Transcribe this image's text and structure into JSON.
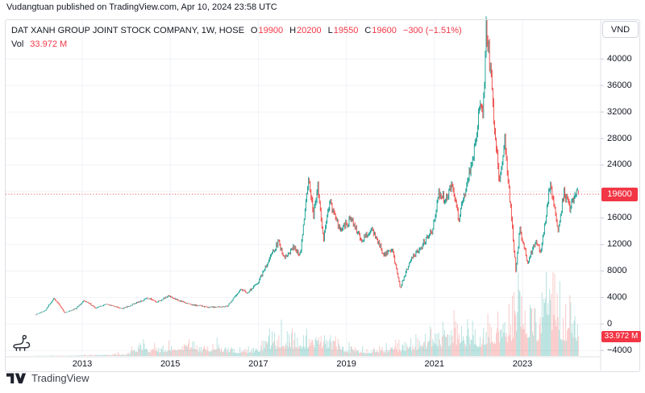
{
  "attribution": "Vudangtuan published on TradingView.com, Apr 10, 2024 23:58 UTC",
  "legend": {
    "symbol_title": "DAT XANH GROUP JOINT STOCK COMPANY, 1W, HOSE",
    "open_label": "O",
    "open_value": "19900",
    "high_label": "H",
    "high_value": "20200",
    "low_label": "L",
    "low_value": "19550",
    "close_label": "C",
    "close_value": "19600",
    "change_value": "−300 (−1.51%)",
    "volume_label": "Vol",
    "volume_value": "33.972 M"
  },
  "price_axis": {
    "currency_button": "VND",
    "price_badge": "19600",
    "volume_badge": "33.972 M"
  },
  "time_axis": {
    "labels": [
      "2013",
      "2015",
      "2017",
      "2019",
      "2021",
      "2023"
    ]
  },
  "footer": {
    "brand": "TradingView"
  },
  "colors": {
    "up": "#26a69a",
    "down": "#ef5350",
    "vol_up": "rgba(38,166,154,0.32)",
    "vol_down": "rgba(239,83,80,0.30)",
    "accent_red": "#f23645",
    "grid": "#f0f2f7",
    "border": "#dde0e6",
    "tick": "#c9ccd6",
    "text": "#131722"
  },
  "chart_data": {
    "type": "candlestick",
    "title": "DAT XANH GROUP JOINT STOCK COMPANY, 1W, HOSE",
    "timeframe": "1W",
    "currency": "VND",
    "legend_position": "top-left",
    "grid": "on",
    "price_line": 19600,
    "last_candle": {
      "open": 19900,
      "high": 20200,
      "low": 19550,
      "close": 19600,
      "change": -300,
      "change_pct": -1.51,
      "volume_millions": 33.972
    },
    "x_axis": {
      "start_year_fraction": 2011.95,
      "end_year_fraction": 2024.27,
      "tick_labels": [
        "2013",
        "2015",
        "2017",
        "2019",
        "2021",
        "2023"
      ]
    },
    "y_axis": {
      "unit": "VND",
      "gridlines": [
        40000,
        36000,
        32000,
        28000,
        24000,
        20000,
        16000,
        12000,
        8000,
        4000,
        0,
        -4000
      ],
      "ticks": [
        [
          40000,
          "40000"
        ],
        [
          36000,
          "36000"
        ],
        [
          32000,
          "32000"
        ],
        [
          28000,
          "28000"
        ],
        [
          24000,
          "24000"
        ],
        [
          16000,
          "16000"
        ],
        [
          12000,
          "12000"
        ],
        [
          8000,
          "8000"
        ],
        [
          4000,
          "4000"
        ],
        [
          0,
          "0"
        ],
        [
          -4000,
          "−4000"
        ]
      ],
      "visible_range": [
        -5000,
        47000
      ]
    },
    "price_keypoints": [
      [
        2011.95,
        1400
      ],
      [
        2012.15,
        2000
      ],
      [
        2012.36,
        3900
      ],
      [
        2012.6,
        1700
      ],
      [
        2012.85,
        2300
      ],
      [
        2013.05,
        3600
      ],
      [
        2013.3,
        2400
      ],
      [
        2013.55,
        3000
      ],
      [
        2013.9,
        2300
      ],
      [
        2014.2,
        3100
      ],
      [
        2014.5,
        3900
      ],
      [
        2014.7,
        3300
      ],
      [
        2014.95,
        4200
      ],
      [
        2015.2,
        3500
      ],
      [
        2015.5,
        2900
      ],
      [
        2015.9,
        2500
      ],
      [
        2016.3,
        2700
      ],
      [
        2016.6,
        5200
      ],
      [
        2016.75,
        4700
      ],
      [
        2017.0,
        6300
      ],
      [
        2017.25,
        9800
      ],
      [
        2017.45,
        12400
      ],
      [
        2017.6,
        9900
      ],
      [
        2017.8,
        11800
      ],
      [
        2017.95,
        10400
      ],
      [
        2018.15,
        22300
      ],
      [
        2018.25,
        16200
      ],
      [
        2018.35,
        20900
      ],
      [
        2018.48,
        12300
      ],
      [
        2018.62,
        18700
      ],
      [
        2018.85,
        14200
      ],
      [
        2019.1,
        15800
      ],
      [
        2019.35,
        12600
      ],
      [
        2019.6,
        14300
      ],
      [
        2019.85,
        10400
      ],
      [
        2020.05,
        11200
      ],
      [
        2020.22,
        5400
      ],
      [
        2020.45,
        9600
      ],
      [
        2020.7,
        11600
      ],
      [
        2020.95,
        14200
      ],
      [
        2021.1,
        19800
      ],
      [
        2021.25,
        18600
      ],
      [
        2021.4,
        21400
      ],
      [
        2021.55,
        15800
      ],
      [
        2021.75,
        21200
      ],
      [
        2021.95,
        27800
      ],
      [
        2022.03,
        34500
      ],
      [
        2022.1,
        30500
      ],
      [
        2022.18,
        45200
      ],
      [
        2022.28,
        37500
      ],
      [
        2022.36,
        29800
      ],
      [
        2022.48,
        21200
      ],
      [
        2022.6,
        27600
      ],
      [
        2022.72,
        18500
      ],
      [
        2022.85,
        8000
      ],
      [
        2022.94,
        14300
      ],
      [
        2023.12,
        9300
      ],
      [
        2023.3,
        12500
      ],
      [
        2023.42,
        10800
      ],
      [
        2023.63,
        21400
      ],
      [
        2023.8,
        14000
      ],
      [
        2023.94,
        19800
      ],
      [
        2024.09,
        17400
      ],
      [
        2024.2,
        20300
      ],
      [
        2024.27,
        19600
      ]
    ],
    "volume_keypoints_millions": [
      [
        2011.95,
        0.4
      ],
      [
        2012.5,
        0.8
      ],
      [
        2013.0,
        1.5
      ],
      [
        2013.6,
        3
      ],
      [
        2014.0,
        5
      ],
      [
        2014.35,
        22
      ],
      [
        2014.6,
        14
      ],
      [
        2015.0,
        20
      ],
      [
        2015.3,
        26
      ],
      [
        2015.7,
        16
      ],
      [
        2016.1,
        22
      ],
      [
        2016.5,
        12
      ],
      [
        2016.9,
        14
      ],
      [
        2017.3,
        30
      ],
      [
        2017.6,
        38
      ],
      [
        2018.0,
        34
      ],
      [
        2018.3,
        42
      ],
      [
        2018.7,
        26
      ],
      [
        2019.1,
        14
      ],
      [
        2019.5,
        11
      ],
      [
        2019.9,
        16
      ],
      [
        2020.25,
        22
      ],
      [
        2020.6,
        26
      ],
      [
        2021.0,
        36
      ],
      [
        2021.4,
        50
      ],
      [
        2021.8,
        44
      ],
      [
        2022.1,
        40
      ],
      [
        2022.4,
        60
      ],
      [
        2022.7,
        55
      ],
      [
        2022.9,
        115
      ],
      [
        2023.1,
        70
      ],
      [
        2023.35,
        65
      ],
      [
        2023.55,
        140
      ],
      [
        2023.75,
        100
      ],
      [
        2023.95,
        70
      ],
      [
        2024.1,
        75
      ],
      [
        2024.27,
        34
      ]
    ]
  }
}
